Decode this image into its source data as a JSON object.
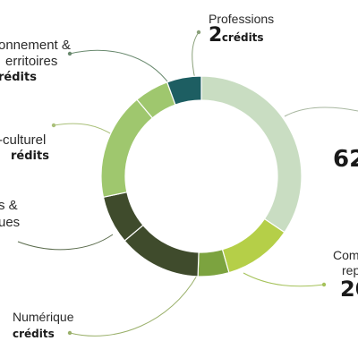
{
  "chart_data": {
    "type": "pie",
    "title": "",
    "credit_unit": "crédits",
    "slices": [
      {
        "name": "",
        "value": 62,
        "color": "#c9ddc2"
      },
      {
        "name": "Com... rep...",
        "value": 20,
        "color": "#b5cf48"
      },
      {
        "name": "",
        "value": 6,
        "color": "#7ca33f"
      },
      {
        "name": "Numérique",
        "value": null,
        "color": "#3f4b2c"
      },
      {
        "name": "...s & ...ues",
        "value": null,
        "color": "#3f4b2c"
      },
      {
        "name": "...-culturel",
        "value": null,
        "color": "#9fc76e"
      },
      {
        "name": "...onnement & ...erritoires",
        "value": null,
        "color": "#9fc76e"
      },
      {
        "name": "Professions",
        "value": 2,
        "color": "#1d5e62"
      }
    ]
  },
  "labels": {
    "professions": {
      "line1": "Professions",
      "number": "2",
      "unit": "crédits"
    },
    "environnement": {
      "line1": "onnement &",
      "line2": "erritoires",
      "unit": "rédits"
    },
    "culturel": {
      "line1": "-culturel",
      "unit": "rédits"
    },
    "sciences": {
      "line1": "s &",
      "line2": "ues"
    },
    "numerique": {
      "line1": "Numérique",
      "unit": "crédits"
    },
    "big_value": {
      "text": "62"
    },
    "competences": {
      "line1": "Com",
      "line2": "rep",
      "number": "20"
    }
  }
}
